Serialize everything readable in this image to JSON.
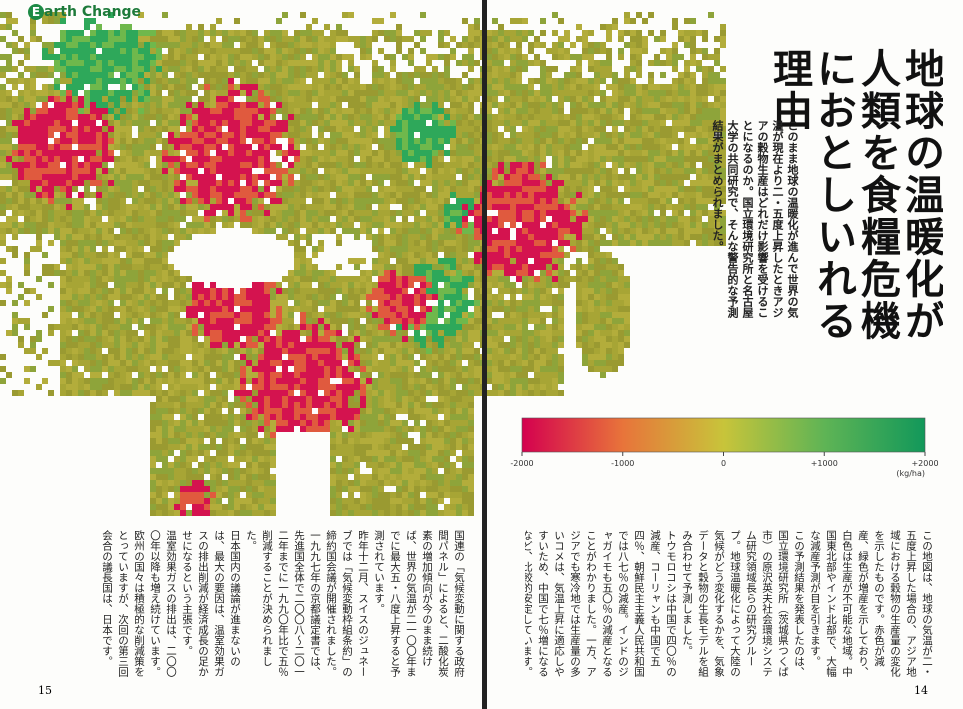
{
  "header": {
    "badge": "E",
    "title": "arth Change"
  },
  "title": "地球の温暖化が人類を食糧危機におとしいれる理由",
  "lede": "このまま地球の温暖化が進んで世界の気温が現在より二・五度上昇したときアジアの穀物生産はどれだけ影響を受けることになるのか。国立環境研究所と名古屋大学の共同研究で、そんな警告的な予測結果がまとめられました。",
  "color_scale": {
    "lim": [
      -2000,
      2000
    ],
    "ticks": [
      -2000,
      -1000,
      0,
      {
        "value": 1000,
        "label": "+1000"
      },
      {
        "value": 2000,
        "label": "+2000"
      }
    ],
    "unit": "(kg/ha)",
    "colors": [
      "#d4004f",
      "#e8743a",
      "#c8c43a",
      "#5fb455",
      "#12985a"
    ]
  },
  "pages": {
    "right": {
      "number": "14",
      "body": [
        "この地図は、地球の気温が二・五度上昇した場合の、アジア地域における穀物の生産量の変化を示したものです。赤色が減産、緑色が増産を示しており、白色は生産が不可能な地域。中国東北部やインド北部で、大幅な減産予測が目を引きます。",
        "この予測結果を発表したのは、国立環境研究所（茨城県つくば市）の原沢英夫社会環境システム研究領域長らの研究グループ。地球温暖化によって大陸の気候がどう変化するかを、気象データと穀物の生長モデルを組み合わせて予測しました。",
        "トウモロコシは中国で四〇％の減産、コーリャンも中国で五四％、朝鮮民主主義人民共和国では八七％の減産。インドのジャガイモも五〇％の減産となることがわかりました。一方、アジアでも寒冷地では生産量の多いコメは、気温上昇に適応しやすいため、中国で七％増になるなど、比較的安定しています。日本国内を見てみると、コメが五％の減産と変動の幅は小さい見込みです。"
      ]
    },
    "left": {
      "number": "15",
      "body": [
        "国連の「気候変動に関する政府間パネル」によると、二酸化炭素の増加傾向が今のまま続けば、世界の気温が二一〇〇年までに最大五・八度上昇すると予測されています。",
        "昨年十二月、スイスのジュネーブでは「気候変動枠組条約」の締約国会議が開催されました。一九九七年の京都議定書では、先進国全体で二〇〇八〜二〇一二年までに一九九〇年比で五％削減することが決められました。",
        "日本国内の議論が進まないのは、最大の要因は、温室効果ガスの排出削減が経済成長の足かせになるという主張です。",
        "温室効果ガスの排出は、二〇〇〇年以降も増え続けています。欧州の国々は積極的な削減策をとっていますが、次回の第三回会合の議長国は、日本です。"
      ]
    }
  }
}
